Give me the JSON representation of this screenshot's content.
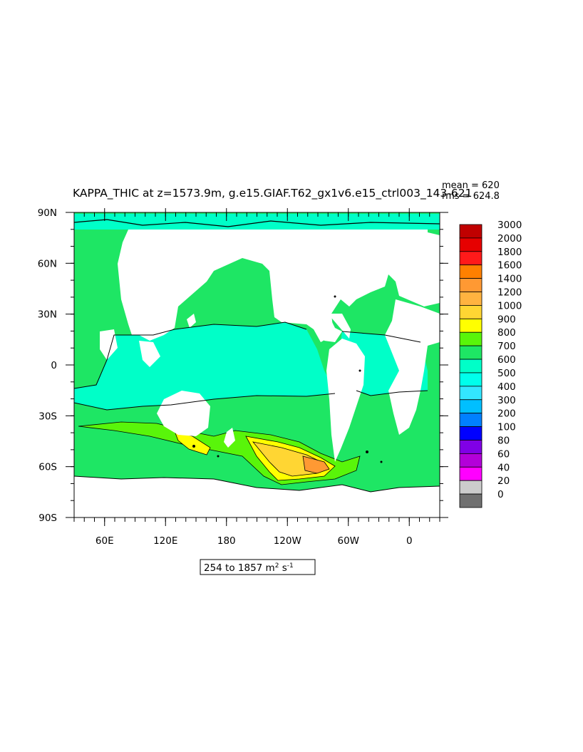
{
  "title": "KAPPA_THIC at z=1573.9m, g.e15.GIAF.T62_gx1v6.e15_ctrl003_143-621",
  "stats": {
    "mean": "mean = 620",
    "rms": "rms = 624.8"
  },
  "range_box": {
    "prefix": "254 to 1857 m",
    "sup1": "2",
    "mid": " s",
    "sup2": "-1"
  },
  "axes": {
    "x_ticks": [
      {
        "lon": 60,
        "label": "60E"
      },
      {
        "lon": 120,
        "label": "120E"
      },
      {
        "lon": 180,
        "label": "180"
      },
      {
        "lon": 240,
        "label": "120W"
      },
      {
        "lon": 300,
        "label": "60W"
      },
      {
        "lon": 360,
        "label": "0"
      }
    ],
    "y_ticks": [
      {
        "lat": 90,
        "label": "90N"
      },
      {
        "lat": 60,
        "label": "60N"
      },
      {
        "lat": 30,
        "label": "30N"
      },
      {
        "lat": 0,
        "label": "0"
      },
      {
        "lat": -30,
        "label": "30S"
      },
      {
        "lat": -60,
        "label": "60S"
      },
      {
        "lat": -90,
        "label": "90S"
      }
    ],
    "lon_range": [
      30,
      390
    ],
    "lat_range": [
      -90,
      90
    ]
  },
  "colorbar": {
    "labels": [
      "3000",
      "2000",
      "1800",
      "1600",
      "1400",
      "1200",
      "1000",
      "900",
      "800",
      "700",
      "600",
      "500",
      "400",
      "300",
      "200",
      "100",
      "80",
      "60",
      "40",
      "20",
      "0"
    ],
    "colors": [
      "#c00000",
      "#e60000",
      "#ff1a1a",
      "#ff8000",
      "#ff9933",
      "#ffb340",
      "#ffd633",
      "#ffff00",
      "#59f50a",
      "#1ee664",
      "#00ffc8",
      "#00ffeb",
      "#33e6ff",
      "#00bfff",
      "#0080ff",
      "#0000ff",
      "#8000e6",
      "#b300d9",
      "#ff00ff",
      "#cccccc",
      "#707070"
    ]
  },
  "chart_data": {
    "type": "heatmap",
    "title": "KAPPA_THIC at z=1573.9m, g.e15.GIAF.T62_gx1v6.e15_ctrl003_143-621",
    "units": "m2 s-1",
    "value_range": [
      254,
      1857
    ],
    "mean": 620,
    "rms": 624.8,
    "x_range_lon": [
      30,
      390
    ],
    "y_range_lat": [
      -90,
      90
    ],
    "levels": [
      0,
      20,
      40,
      60,
      80,
      100,
      200,
      300,
      400,
      500,
      600,
      700,
      800,
      900,
      1000,
      1200,
      1400,
      1600,
      1800,
      2000,
      3000
    ]
  }
}
